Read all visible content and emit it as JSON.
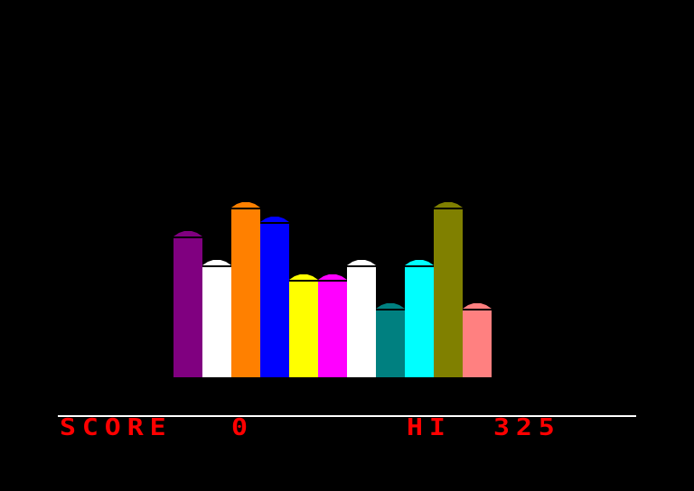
{
  "colors": {
    "background": "#000000",
    "hud_text": "#ff0000",
    "divider": "#ffffff"
  },
  "columns": [
    {
      "color": "#800080",
      "height": 10
    },
    {
      "color": "#ffffff",
      "height": 8
    },
    {
      "color": "#ff8000",
      "height": 12
    },
    {
      "color": "#0000ff",
      "height": 11
    },
    {
      "color": "#ffff00",
      "height": 7
    },
    {
      "color": "#ff00ff",
      "height": 7
    },
    {
      "color": "#ffffff",
      "height": 8
    },
    {
      "color": "#008080",
      "height": 5
    },
    {
      "color": "#00ffff",
      "height": 8
    },
    {
      "color": "#808000",
      "height": 12
    },
    {
      "color": "#ff8080",
      "height": 5
    }
  ],
  "hud": {
    "score_label": "SCORE",
    "score_value": "0",
    "hi_label": "HI",
    "hi_value": "325"
  }
}
